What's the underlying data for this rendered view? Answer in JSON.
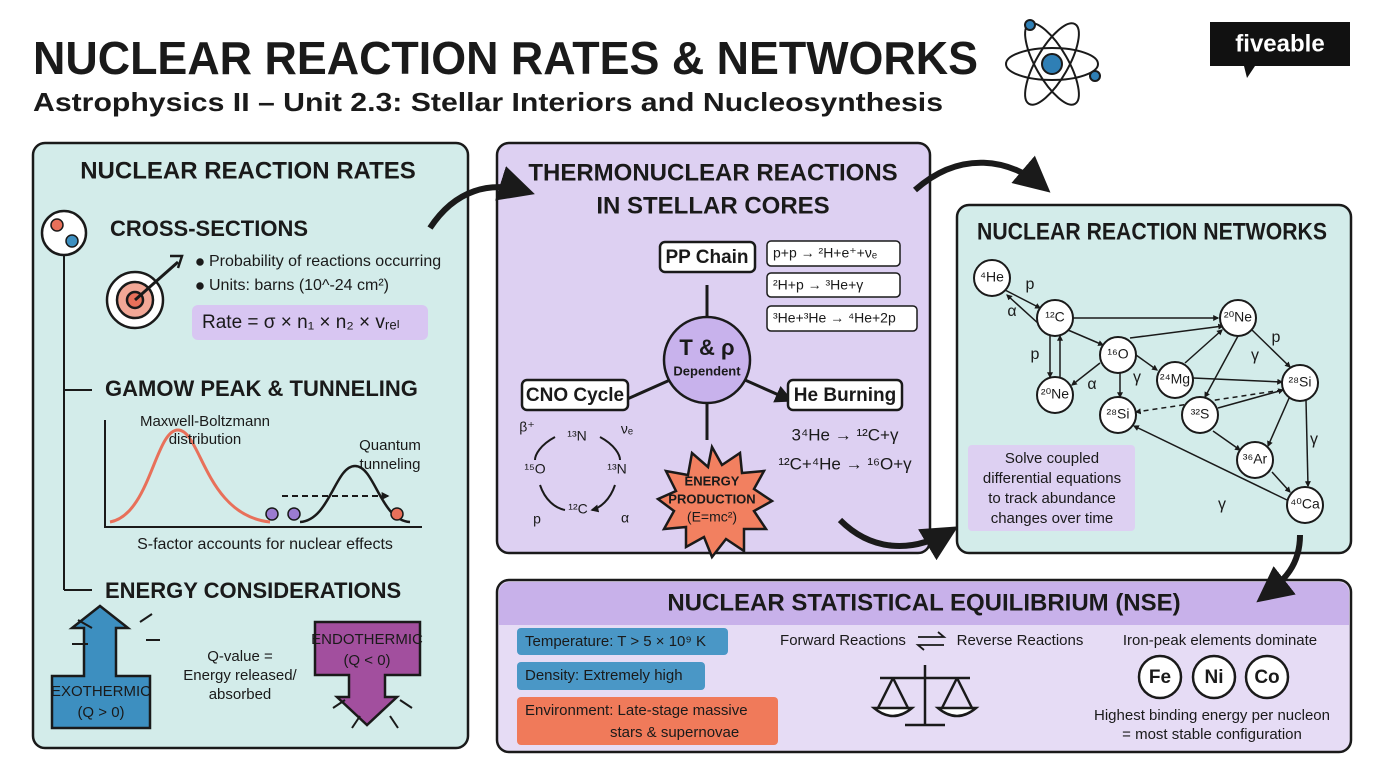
{
  "header": {
    "title": "NUCLEAR REACTION RATES & NETWORKS",
    "subtitle": "Astrophysics II – Unit 2.3: Stellar Interiors and Nucleosynthesis",
    "logo": "fiveable"
  },
  "reaction_rates": {
    "title": "NUCLEAR REACTION RATES",
    "cross_sections": {
      "title": "CROSS-SECTIONS",
      "bullets": [
        "Probability of reactions occurring",
        "Units: barns (10^-24 cm²)"
      ],
      "formula": "Rate = σ × n₁ × n₂ × vᵣₑₗ"
    },
    "gamow": {
      "title": "GAMOW PEAK & TUNNELING",
      "maxwell": [
        "Maxwell-Boltzmann",
        "distribution"
      ],
      "tunneling": [
        "Quantum",
        "tunneling"
      ],
      "caption": "S-factor accounts for nuclear effects"
    },
    "energy": {
      "title": "ENERGY CONSIDERATIONS",
      "exothermic": [
        "EXOTHERMIC",
        "(Q > 0)"
      ],
      "endothermic": [
        "ENDOTHERMIC",
        "(Q < 0)"
      ],
      "q_value": [
        "Q-value =",
        "Energy released/",
        "absorbed"
      ]
    }
  },
  "thermonuclear": {
    "title": [
      "THERMONUCLEAR REACTIONS",
      "IN STELLAR CORES"
    ],
    "center": [
      "T & ρ",
      "Dependent"
    ],
    "pp_chain": {
      "label": "PP Chain",
      "reactions": [
        "p+p → ²H+e⁺+νₑ",
        "²H+p → ³He+γ",
        "³He+³He → ⁴He+2p"
      ]
    },
    "cno": {
      "label": "CNO Cycle",
      "nodes": [
        "β⁺",
        "¹³N",
        "νₑ",
        "¹⁵O",
        "¹³N",
        "¹²C",
        "p",
        "α"
      ]
    },
    "he_burning": {
      "label": "He Burning",
      "reactions": [
        "3⁴He → ¹²C+γ",
        "¹²C+⁴He → ¹⁶O+γ"
      ]
    },
    "energy": [
      "ENERGY",
      "PRODUCTION",
      "(E=mc²)"
    ]
  },
  "networks": {
    "title": "NUCLEAR REACTION NETWORKS",
    "nodes": [
      "⁴He",
      "¹²C",
      "²⁰Ne",
      "¹⁶O",
      "²⁰Ne",
      "²⁴Mg",
      "²⁸Si",
      "²⁸Si",
      "³²S",
      "³⁶Ar",
      "⁴⁰Ca"
    ],
    "edge_labels": [
      "p",
      "α",
      "p",
      "α",
      "γ",
      "p",
      "γ",
      "γ",
      "γ"
    ],
    "note": [
      "Solve coupled",
      "differential equations",
      "to track abundance",
      "changes over time"
    ]
  },
  "nse": {
    "title": "NUCLEAR STATISTICAL EQUILIBRIUM (NSE)",
    "conditions": [
      "Temperature: T > 5 × 10⁹ K",
      "Density: Extremely high",
      [
        "Environment: Late-stage massive",
        "stars & supernovae"
      ]
    ],
    "forward": "Forward Reactions",
    "reverse": "Reverse Reactions",
    "iron_peak": "Iron-peak elements dominate",
    "elements": [
      "Fe",
      "Ni",
      "Co"
    ],
    "stability": [
      "Highest binding energy per nucleon",
      "= most stable configuration"
    ]
  }
}
